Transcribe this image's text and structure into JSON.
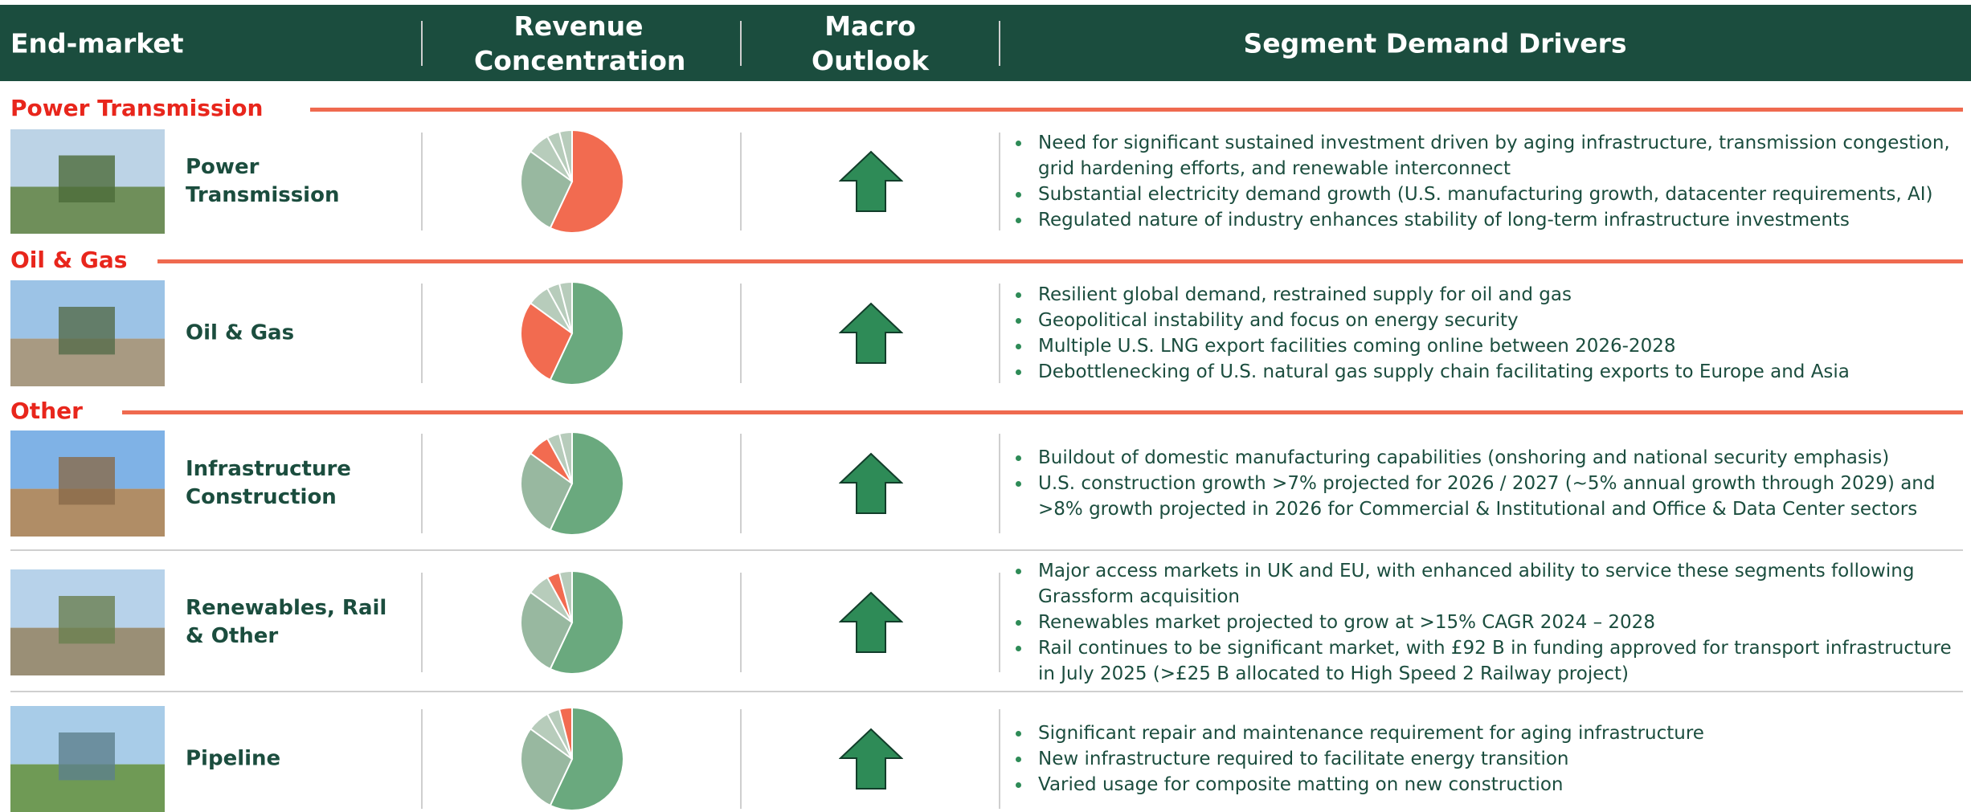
{
  "header": {
    "columns": [
      "End-market",
      "Revenue Concentration",
      "Macro Outlook",
      "Segment Demand Drivers"
    ]
  },
  "revenue_mix": {
    "type": "pie",
    "values": [
      57,
      28,
      7,
      4,
      4
    ],
    "highlight_color": "#f26b50",
    "colors": [
      "#6aa97e",
      "#98b8a0",
      "#b7ccbb",
      "#b7ccbb",
      "#b7ccbb"
    ]
  },
  "sections": [
    {
      "title": "Power Transmission",
      "rows": [
        {
          "label": "Power Transmission",
          "highlight": 0,
          "bullets": [
            "Need for significant sustained investment driven by aging infrastructure, transmission congestion, grid hardening efforts, and renewable interconnect",
            "Substantial electricity demand growth (U.S. manufacturing growth, datacenter requirements, AI)",
            "Regulated nature of industry enhances stability of long-term infrastructure investments"
          ]
        }
      ]
    },
    {
      "title": "Oil & Gas",
      "rows": [
        {
          "label": "Oil & Gas",
          "highlight": 1,
          "bullets": [
            "Resilient global demand, restrained supply for oil and gas",
            "Geopolitical instability and focus on energy security",
            "Multiple U.S. LNG export facilities coming online between 2026-2028",
            "Debottlenecking  of U.S. natural gas supply chain facilitating exports to Europe and Asia"
          ]
        }
      ]
    },
    {
      "title": "Other",
      "rows": [
        {
          "label": "Infrastructure Construction",
          "highlight": 2,
          "bullets": [
            "Buildout of domestic manufacturing capabilities  (onshoring and national security emphasis)",
            "U.S. construction growth >7% projected for 2026 / 2027 (~5% annual growth through 2029) and >8% growth projected in 2026 for Commercial & Institutional and Office & Data Center sectors"
          ]
        },
        {
          "label": "Renewables, Rail & Other",
          "highlight": 3,
          "bullets": [
            "Major access markets in UK and EU, with enhanced ability to service these segments following Grassform acquisition",
            "Renewables market projected to grow at >15% CAGR 2024 – 2028",
            "Rail continues to be significant market, with £92 B in funding approved for transport infrastructure in July 2025 (>£25 B allocated to High Speed 2 Railway project)"
          ]
        },
        {
          "label": "Pipeline",
          "highlight": 4,
          "bullets": [
            "Significant repair and maintenance requirement for aging infrastructure",
            "New infrastructure required to facilitate energy transition",
            "Varied usage for composite matting on new construction"
          ]
        }
      ]
    }
  ]
}
